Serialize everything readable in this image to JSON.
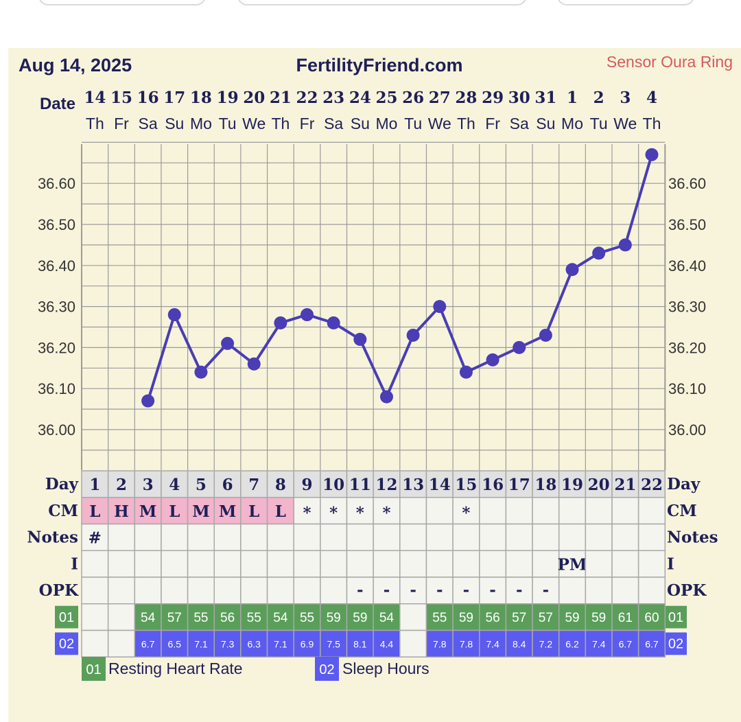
{
  "header": {
    "date": "Aug 14, 2025",
    "site": "FertilityFriend.com",
    "sensor": "Sensor Oura Ring"
  },
  "row_labels": {
    "date": "Date",
    "day": "Day",
    "cm": "CM",
    "notes": "Notes",
    "intercourse": "I",
    "opk": "OPK",
    "rhr_code": "01",
    "sleep_code": "02"
  },
  "legend": {
    "rhr_code": "01",
    "rhr_label": "Resting Heart Rate",
    "sleep_code": "02",
    "sleep_label": "Sleep Hours"
  },
  "colors": {
    "line": "#4a3db5",
    "rhr": "#5a9e5a",
    "sleep": "#5b5bf0",
    "cm_pink": "#f2b5cc",
    "panel": "#f8f4dc"
  },
  "chart_data": {
    "type": "line",
    "x": [
      "14",
      "15",
      "16",
      "17",
      "18",
      "19",
      "20",
      "21",
      "22",
      "23",
      "24",
      "25",
      "26",
      "27",
      "28",
      "29",
      "30",
      "31",
      "1",
      "2",
      "3",
      "4"
    ],
    "weekdays": [
      "Th",
      "Fr",
      "Sa",
      "Su",
      "Mo",
      "Tu",
      "We",
      "Th",
      "Fr",
      "Sa",
      "Su",
      "Mo",
      "Tu",
      "We",
      "Th",
      "Fr",
      "Sa",
      "Su",
      "Mo",
      "Tu",
      "We",
      "Th"
    ],
    "cycle_days": [
      "1",
      "2",
      "3",
      "4",
      "5",
      "6",
      "7",
      "8",
      "9",
      "10",
      "11",
      "12",
      "13",
      "14",
      "15",
      "16",
      "17",
      "18",
      "19",
      "20",
      "21",
      "22"
    ],
    "series": [
      {
        "values": [
          null,
          null,
          36.07,
          36.28,
          36.14,
          36.21,
          36.16,
          36.26,
          36.28,
          36.26,
          36.22,
          36.08,
          36.23,
          36.3,
          36.14,
          36.17,
          36.2,
          36.23,
          36.39,
          36.43,
          36.45,
          36.67
        ]
      }
    ],
    "yticks": [
      "36.00",
      "36.10",
      "36.20",
      "36.30",
      "36.40",
      "36.50",
      "36.60"
    ],
    "ylim": [
      35.91,
      36.71
    ],
    "grid": true,
    "cm": [
      "L",
      "H",
      "M",
      "L",
      "M",
      "M",
      "L",
      "L",
      "*",
      "*",
      "*",
      "*",
      "",
      "",
      "*",
      "",
      "",
      "",
      "",
      "",
      "",
      ""
    ],
    "notes": [
      "#",
      "",
      "",
      "",
      "",
      "",
      "",
      "",
      "",
      "",
      "",
      "",
      "",
      "",
      "",
      "",
      "",
      "",
      "",
      "",
      "",
      ""
    ],
    "intercourse": [
      "",
      "",
      "",
      "",
      "",
      "",
      "",
      "",
      "",
      "",
      "",
      "",
      "",
      "",
      "",
      "",
      "",
      "",
      "PM",
      "",
      "",
      ""
    ],
    "opk": [
      "",
      "",
      "",
      "",
      "",
      "",
      "",
      "",
      "",
      "",
      "-",
      "-",
      "-",
      "-",
      "-",
      "-",
      "-",
      "-",
      "",
      "",
      "",
      ""
    ],
    "resting_heart_rate": [
      "",
      "",
      "54",
      "57",
      "55",
      "56",
      "55",
      "54",
      "55",
      "59",
      "59",
      "54",
      "",
      "55",
      "59",
      "56",
      "57",
      "57",
      "59",
      "59",
      "61",
      "60"
    ],
    "sleep_hours": [
      "",
      "",
      "6.7",
      "6.5",
      "7.1",
      "7.3",
      "6.3",
      "7.1",
      "6.9",
      "7.5",
      "8.1",
      "4.4",
      "",
      "7.8",
      "7.8",
      "7.4",
      "8.4",
      "7.2",
      "6.2",
      "7.4",
      "6.7",
      "6.7"
    ]
  }
}
